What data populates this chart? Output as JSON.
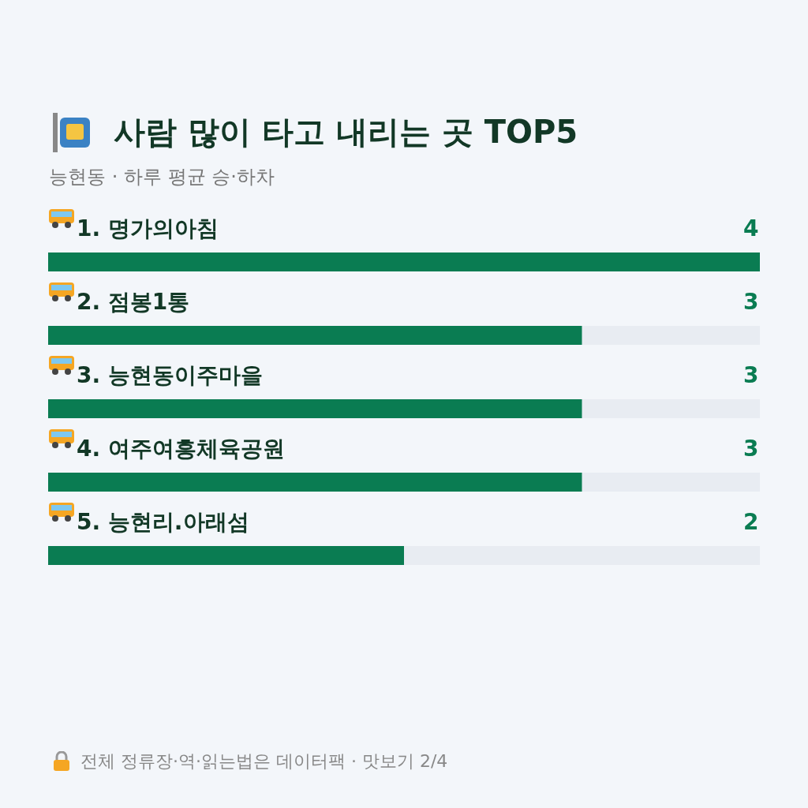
{
  "chart_data": {
    "type": "bar",
    "orientation": "horizontal",
    "title": "사람 많이 타고 내리는 곳 TOP5",
    "subtitle": "능현동 · 하루 평균 승·하차",
    "categories": [
      "1. 명가의아침",
      "2. 점봉1통",
      "3. 능현동이주마을",
      "4. 여주여흥체육공원",
      "5. 능현리.아래섬"
    ],
    "values": [
      4,
      3,
      3,
      3,
      2
    ],
    "color": "#0a7c52",
    "xlim": [
      0,
      4
    ],
    "tick_labels": false,
    "data_labels": true,
    "annotations": [
      "전체 정류장·역·읽는법은 데이터팩 · 맛보기 2/4"
    ]
  }
}
